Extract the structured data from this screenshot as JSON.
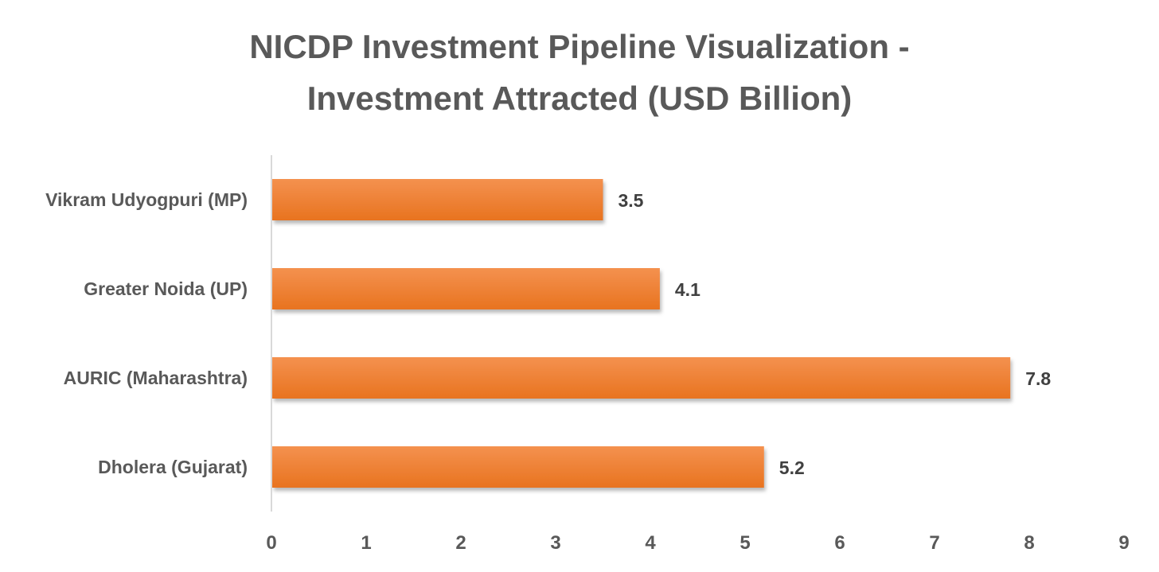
{
  "chart_data": {
    "type": "bar",
    "orientation": "horizontal",
    "title_lines": [
      "NICDP Investment Pipeline Visualization -",
      "Investment Attracted (USD Billion)"
    ],
    "categories": [
      "Vikram Udyogpuri (MP)",
      "Greater Noida (UP)",
      "AURIC (Maharashtra)",
      "Dholera (Gujarat)"
    ],
    "values": [
      3.5,
      4.1,
      7.8,
      5.2
    ],
    "data_labels": [
      "3.5",
      "4.1",
      "7.8",
      "5.2"
    ],
    "xlim": [
      0,
      9
    ],
    "xticks": [
      "0",
      "1",
      "2",
      "3",
      "4",
      "5",
      "6",
      "7",
      "8",
      "9"
    ],
    "xlabel": "",
    "ylabel": "",
    "grid": false,
    "legend": "none",
    "colors": {
      "bar": "#ED7D31",
      "bar_light": "#F4914F",
      "axis": "#D9D9D9",
      "title": "#595959",
      "labels": "#595959",
      "data_labels": "#404040"
    }
  }
}
